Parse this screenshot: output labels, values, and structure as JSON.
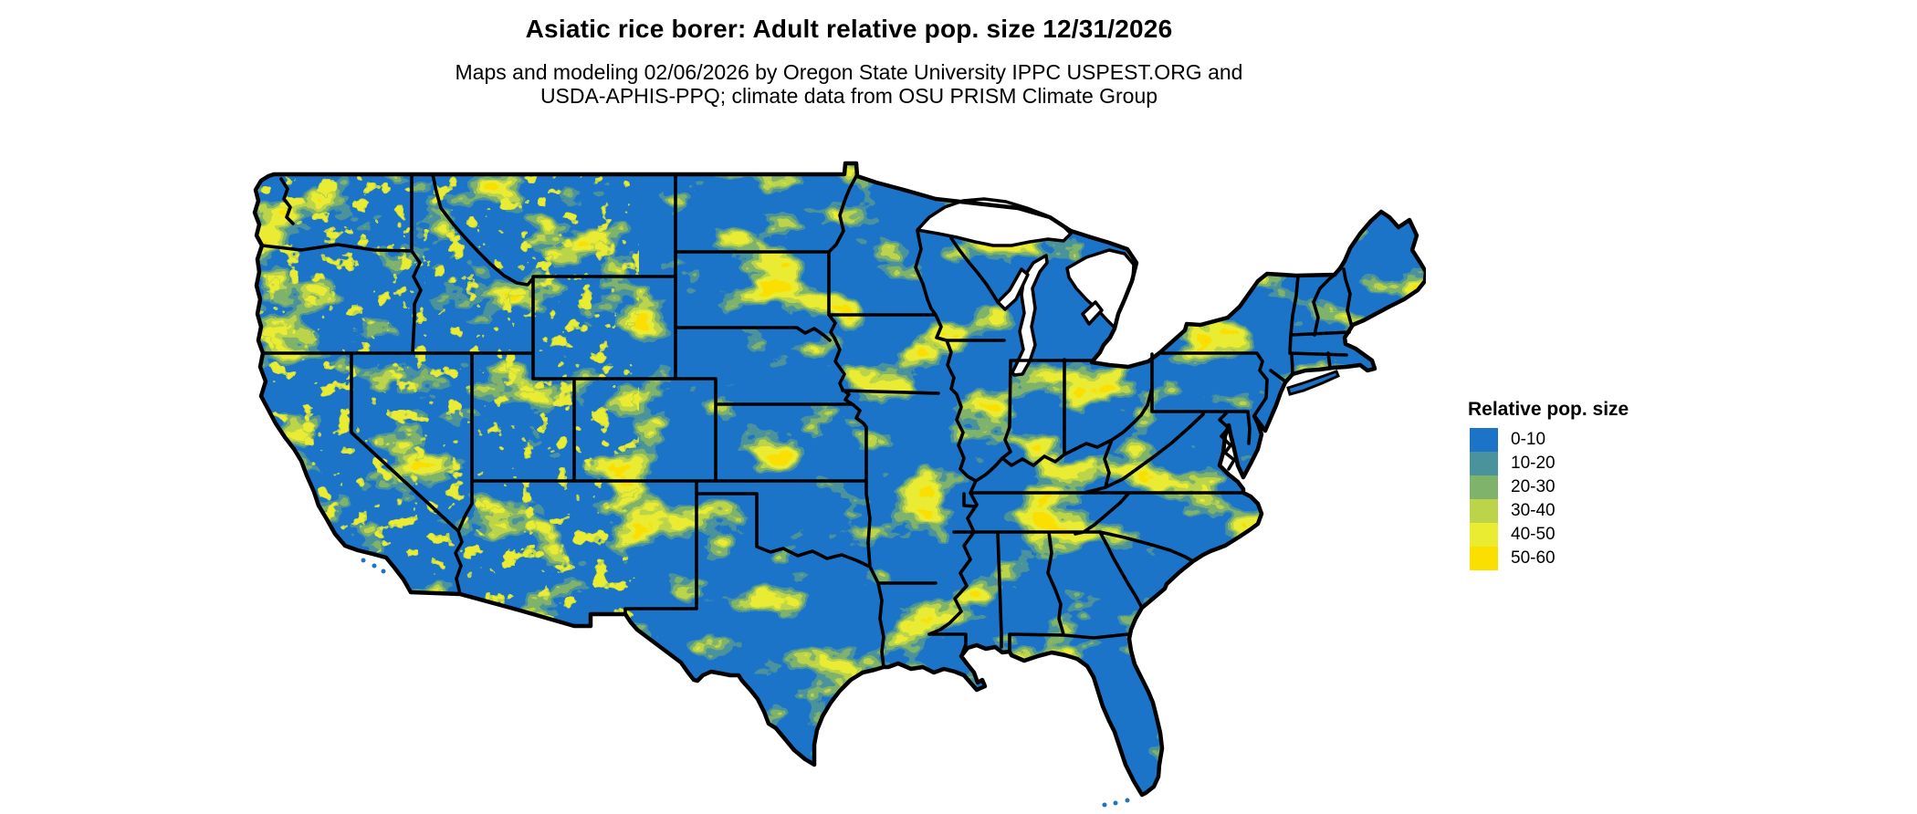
{
  "header": {
    "title": "Asiatic rice borer: Adult relative pop. size 12/31/2026",
    "subtitle_line1": "Maps and modeling 02/06/2026 by Oregon State University IPPC USPEST.ORG and",
    "subtitle_line2": "USDA-APHIS-PPQ; climate data from OSU PRISM Climate Group"
  },
  "legend": {
    "title": "Relative pop. size",
    "classes": [
      {
        "label": "0-10",
        "color": "#1B74C8"
      },
      {
        "label": "10-20",
        "color": "#4B939C"
      },
      {
        "label": "20-30",
        "color": "#7FB26A"
      },
      {
        "label": "30-40",
        "color": "#BCD44A"
      },
      {
        "label": "40-50",
        "color": "#E9EC30"
      },
      {
        "label": "50-60",
        "color": "#FADF00"
      }
    ]
  },
  "map": {
    "region": "Contiguous United States",
    "border_color": "#000000",
    "water_color": "#FFFFFF"
  }
}
